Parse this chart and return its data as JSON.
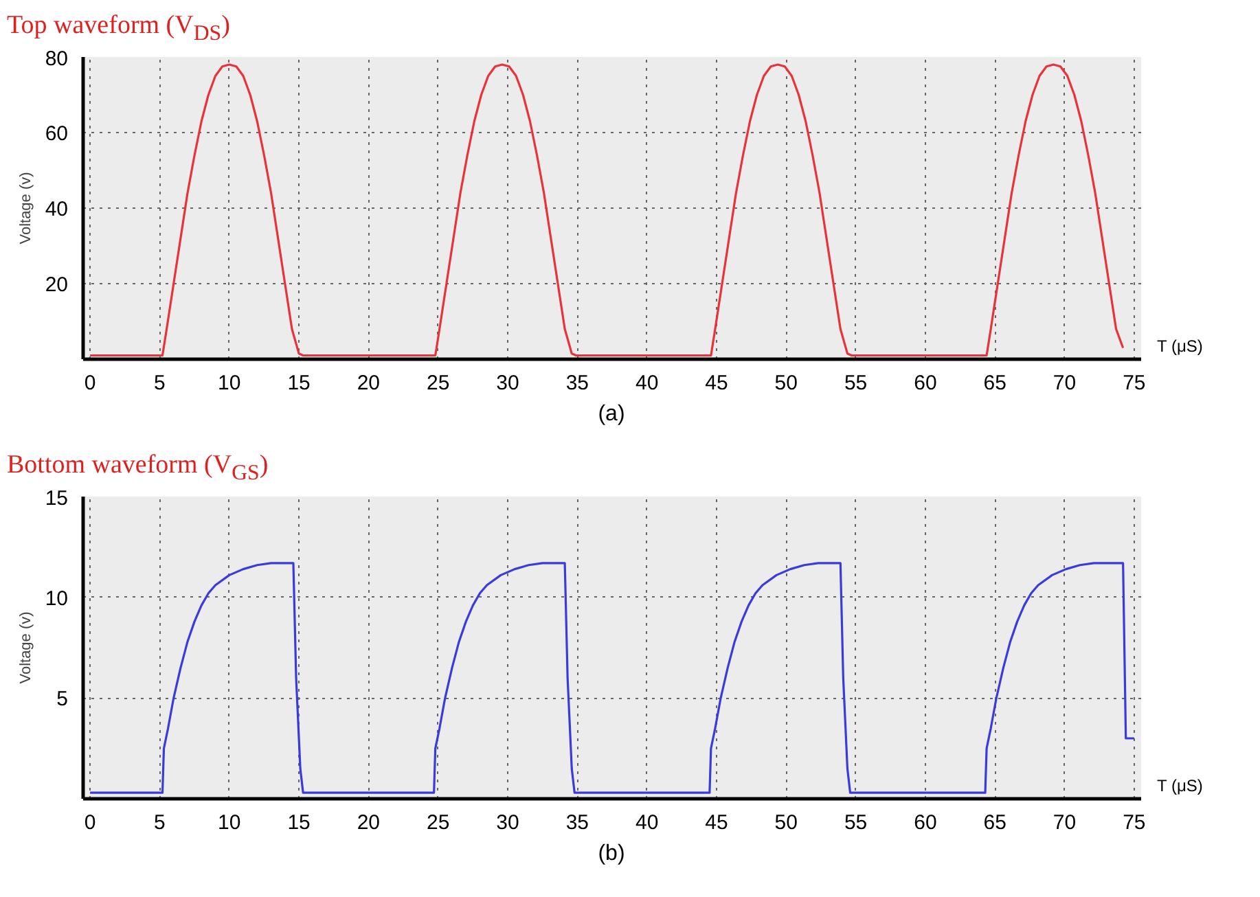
{
  "chart_data": [
    {
      "type": "line",
      "title": "Top waveform (V$_{DS}$)",
      "xlabel": "T (μS)",
      "ylabel": "Voltage (v)",
      "annotations": [
        "(a)"
      ],
      "series": [
        {
          "color": "#e8333a",
          "x": [
            0,
            5.2,
            5.5,
            6,
            6.5,
            7,
            7.5,
            8,
            8.5,
            9,
            9.5,
            10,
            10.5,
            11,
            11.5,
            12,
            12.5,
            13,
            13.5,
            14,
            14.5,
            15,
            15.3,
            24.8,
            25.1,
            25.6,
            26.1,
            26.6,
            27.1,
            27.6,
            28.1,
            28.6,
            29.1,
            29.6,
            30.1,
            30.6,
            31.1,
            31.6,
            32.1,
            32.6,
            33.1,
            33.6,
            34.1,
            34.6,
            34.9,
            44.6,
            44.9,
            45.4,
            45.9,
            46.4,
            46.9,
            47.4,
            47.9,
            48.4,
            48.9,
            49.4,
            49.9,
            50.4,
            50.9,
            51.4,
            51.9,
            52.4,
            52.9,
            53.4,
            53.9,
            54.4,
            54.7,
            64.4,
            64.7,
            65.2,
            65.7,
            66.2,
            66.7,
            67.2,
            67.7,
            68.2,
            68.7,
            69.2,
            69.7,
            70.2,
            70.7,
            71.2,
            71.7,
            72.2,
            72.7,
            73.2,
            73.7,
            74.2
          ],
          "values": [
            1,
            1,
            8,
            20,
            32,
            44,
            54,
            63,
            70,
            75,
            77.5,
            78,
            77.5,
            75,
            70,
            63,
            54,
            44,
            32,
            20,
            8,
            1.5,
            1,
            1,
            8,
            20,
            32,
            44,
            54,
            63,
            70,
            75,
            77.5,
            78,
            77.5,
            75,
            70,
            63,
            54,
            44,
            32,
            20,
            8,
            1.5,
            1,
            1,
            8,
            20,
            32,
            44,
            54,
            63,
            70,
            75,
            77.5,
            78,
            77.5,
            75,
            70,
            63,
            54,
            44,
            32,
            20,
            8,
            1.5,
            1,
            1,
            8,
            20,
            32,
            44,
            54,
            63,
            70,
            75,
            77.5,
            78,
            77.5,
            75,
            70,
            63,
            54,
            44,
            32,
            20,
            8,
            3
          ]
        }
      ],
      "xlim": [
        -0.5,
        75.5
      ],
      "ylim": [
        0,
        80
      ],
      "xticks": [
        0,
        5,
        10,
        15,
        20,
        25,
        30,
        35,
        40,
        45,
        50,
        55,
        60,
        65,
        70,
        75
      ],
      "yticks": [
        20,
        40,
        60,
        80
      ],
      "grid": true,
      "marker": "none",
      "line_style": "solid"
    },
    {
      "type": "line",
      "title": "Bottom waveform (V$_{GS}$)",
      "xlabel": "T (μS)",
      "ylabel": "Voltage (v)",
      "annotations": [
        "(b)"
      ],
      "series": [
        {
          "color": "#3b3bdc",
          "x": [
            0,
            5.2,
            5.3,
            5.6,
            6,
            6.5,
            7,
            7.5,
            8,
            8.5,
            9,
            10,
            11,
            12,
            13,
            14,
            14.6,
            14.8,
            15.1,
            15.3,
            24.7,
            24.8,
            25.1,
            25.5,
            26,
            26.5,
            27,
            27.5,
            28,
            28.5,
            29.5,
            30.5,
            31.5,
            32.5,
            33.5,
            34.1,
            34.3,
            34.6,
            34.8,
            44.5,
            44.6,
            44.9,
            45.3,
            45.8,
            46.3,
            46.8,
            47.3,
            47.8,
            48.3,
            49.3,
            50.3,
            51.3,
            52.3,
            53.3,
            53.9,
            54.1,
            54.4,
            54.6,
            64.3,
            64.4,
            64.7,
            65.1,
            65.6,
            66.1,
            66.6,
            67.1,
            67.6,
            68.1,
            69.1,
            70.1,
            71.1,
            72.1,
            73.1,
            73.7,
            74.2,
            74.4,
            75
          ],
          "values": [
            0.3,
            0.3,
            2.5,
            3.5,
            5,
            6.5,
            7.8,
            8.8,
            9.6,
            10.2,
            10.6,
            11.1,
            11.4,
            11.6,
            11.7,
            11.7,
            11.7,
            6,
            1.5,
            0.3,
            0.3,
            2.5,
            3.5,
            5,
            6.5,
            7.8,
            8.8,
            9.6,
            10.2,
            10.6,
            11.1,
            11.4,
            11.6,
            11.7,
            11.7,
            11.7,
            6,
            1.5,
            0.3,
            0.3,
            2.5,
            3.5,
            5,
            6.5,
            7.8,
            8.8,
            9.6,
            10.2,
            10.6,
            11.1,
            11.4,
            11.6,
            11.7,
            11.7,
            11.7,
            6,
            1.5,
            0.3,
            0.3,
            2.5,
            3.5,
            5,
            6.5,
            7.8,
            8.8,
            9.6,
            10.2,
            10.6,
            11.1,
            11.4,
            11.6,
            11.7,
            11.7,
            11.7,
            11.7,
            3,
            3
          ]
        }
      ],
      "xlim": [
        -0.5,
        75.5
      ],
      "ylim": [
        0,
        15
      ],
      "xticks": [
        0,
        5,
        10,
        15,
        20,
        25,
        30,
        35,
        40,
        45,
        50,
        55,
        60,
        65,
        70,
        75
      ],
      "yticks": [
        5,
        10,
        15
      ],
      "grid": true,
      "marker": "none",
      "line_style": "solid"
    }
  ]
}
